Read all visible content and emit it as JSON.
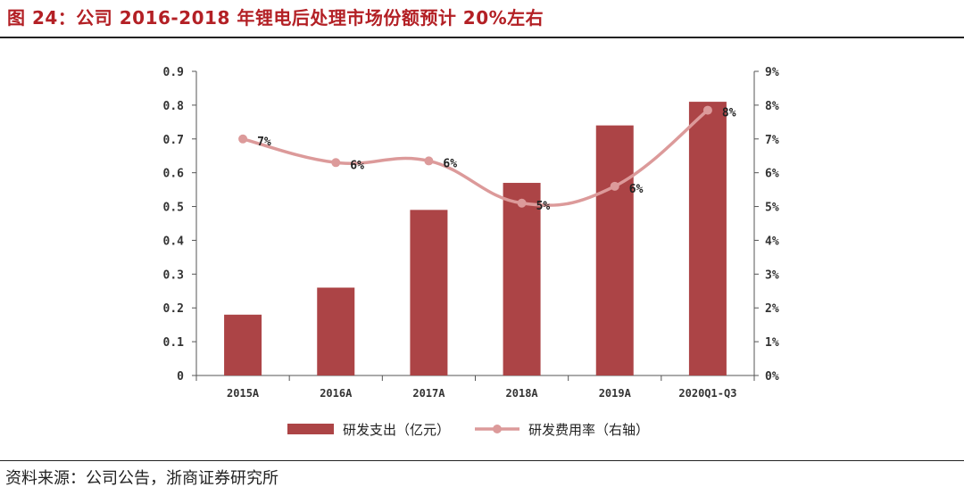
{
  "figure": {
    "title": "图 24：公司 2016-2018 年锂电后处理市场份额预计 20%左右",
    "source": "资料来源：公司公告，浙商证券研究所"
  },
  "colors": {
    "bar": "#ac4446",
    "line": "#dc9a9a",
    "title": "#b32025"
  },
  "chart_data": {
    "type": "bar",
    "categories": [
      "2015A",
      "2016A",
      "2017A",
      "2018A",
      "2019A",
      "2020Q1-Q3"
    ],
    "series": [
      {
        "name": "研发支出（亿元）",
        "type": "bar",
        "axis": "left",
        "values": [
          0.18,
          0.26,
          0.49,
          0.57,
          0.74,
          0.81
        ]
      },
      {
        "name": "研发费用率（右轴）",
        "type": "line",
        "axis": "right",
        "values": [
          7.0,
          6.3,
          6.35,
          5.1,
          5.6,
          7.85
        ],
        "data_labels": [
          "7%",
          "6%",
          "6%",
          "5%",
          "6%",
          "8%"
        ]
      }
    ],
    "y_left": {
      "ylim": [
        0,
        0.9
      ],
      "ticks": [
        "0",
        "0.1",
        "0.2",
        "0.3",
        "0.4",
        "0.5",
        "0.6",
        "0.7",
        "0.8",
        "0.9"
      ]
    },
    "y_right": {
      "ylim": [
        0,
        9
      ],
      "unit": "%",
      "ticks": [
        "0%",
        "1%",
        "2%",
        "3%",
        "4%",
        "5%",
        "6%",
        "7%",
        "8%",
        "9%"
      ]
    },
    "legend": "bottom",
    "grid": false
  }
}
